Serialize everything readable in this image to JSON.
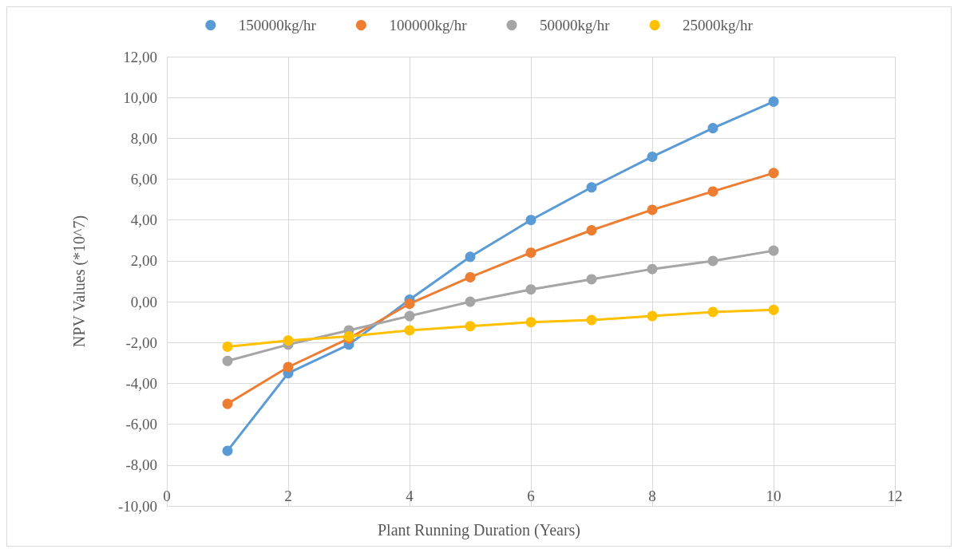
{
  "chart_data": {
    "type": "line",
    "xlabel": "Plant Running Duration (Years)",
    "ylabel": "NPV Values (*10^7)",
    "x": [
      1,
      2,
      3,
      4,
      5,
      6,
      7,
      8,
      9,
      10
    ],
    "series": [
      {
        "name": "150000kg/hr",
        "color": "#5b9bd5",
        "values": [
          -7.3,
          -3.5,
          -2.1,
          0.1,
          2.2,
          4.0,
          5.6,
          7.1,
          8.5,
          9.8
        ]
      },
      {
        "name": "100000kg/hr",
        "color": "#ed7d31",
        "values": [
          -5.0,
          -3.2,
          -1.8,
          -0.1,
          1.2,
          2.4,
          3.5,
          4.5,
          5.4,
          6.3
        ]
      },
      {
        "name": "50000kg/hr",
        "color": "#a5a5a5",
        "values": [
          -2.9,
          -2.1,
          -1.4,
          -0.7,
          0,
          0.6,
          1.1,
          1.6,
          2.0,
          2.5
        ]
      },
      {
        "name": "25000kg/hr",
        "color": "#ffc000",
        "values": [
          -2.2,
          -1.9,
          -1.7,
          -1.4,
          -1.2,
          -1.0,
          -0.9,
          -0.7,
          -0.5,
          -0.4
        ]
      }
    ],
    "xlim": [
      0,
      12
    ],
    "xticks": [
      0,
      2,
      4,
      6,
      8,
      10,
      12
    ],
    "ylim": [
      -10,
      12
    ],
    "yticks": [
      {
        "value": -10,
        "label": "-10,00"
      },
      {
        "value": -8,
        "label": "-8,00"
      },
      {
        "value": -6,
        "label": "-6,00"
      },
      {
        "value": -4,
        "label": "-4,00"
      },
      {
        "value": -2,
        "label": "-2,00"
      },
      {
        "value": 0,
        "label": "0,00"
      },
      {
        "value": 2,
        "label": "2,00"
      },
      {
        "value": 4,
        "label": "4,00"
      },
      {
        "value": 6,
        "label": "6,00"
      },
      {
        "value": 8,
        "label": "8,00"
      },
      {
        "value": 10,
        "label": "10,00"
      },
      {
        "value": 12,
        "label": "12,00"
      }
    ],
    "grid": true,
    "legend": "top",
    "marker": "circle",
    "line_style": "solid"
  }
}
